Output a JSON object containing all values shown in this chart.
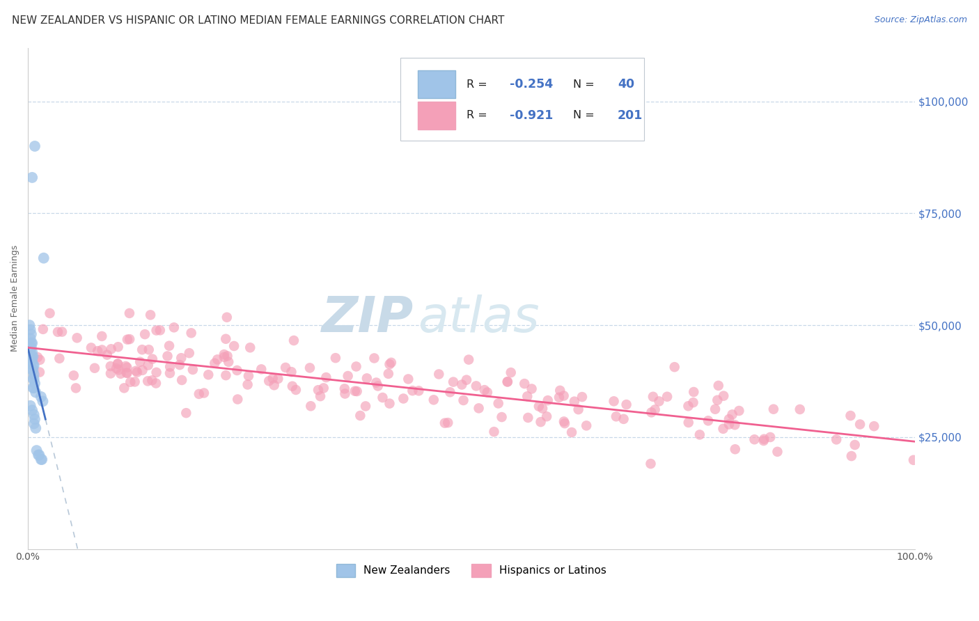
{
  "title": "NEW ZEALANDER VS HISPANIC OR LATINO MEDIAN FEMALE EARNINGS CORRELATION CHART",
  "source": "Source: ZipAtlas.com",
  "ylabel": "Median Female Earnings",
  "watermark_zip": "ZIP",
  "watermark_atlas": "atlas",
  "legend_label_blue": "New Zealanders",
  "legend_label_pink": "Hispanics or Latinos",
  "ytick_labels": [
    "$100,000",
    "$75,000",
    "$50,000",
    "$25,000"
  ],
  "ytick_values": [
    100000,
    75000,
    50000,
    25000
  ],
  "ylim": [
    0,
    112000
  ],
  "xlim": [
    0.0,
    1.0
  ],
  "blue_dot_color": "#a0c4e8",
  "pink_dot_color": "#f4a0b8",
  "blue_line_color": "#4472c4",
  "pink_line_color": "#f06090",
  "dashed_line_color": "#b8c8d8",
  "background_color": "#ffffff",
  "grid_color": "#c8d8e8",
  "title_fontsize": 11,
  "source_fontsize": 9,
  "axis_label_fontsize": 9,
  "tick_fontsize": 10,
  "watermark_zip_color": "#c8dae8",
  "watermark_atlas_color": "#d8e8f0",
  "right_tick_color": "#4472c4",
  "legend_text_color": "#333333",
  "legend_value_color": "#4472c4"
}
